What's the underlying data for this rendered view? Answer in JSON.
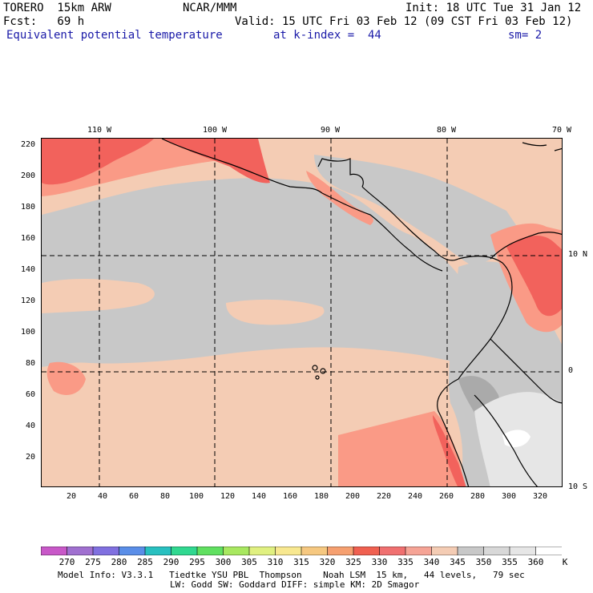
{
  "header": {
    "model": "TORERO  15km ARW",
    "org": "NCAR/MMM",
    "init": "Init: 18 UTC Tue 31 Jan 12",
    "fcst": "Fcst:   69 h",
    "valid": "Valid: 15 UTC Fri 03 Feb 12 (09 CST Fri 03 Feb 12)",
    "field": "Equivalent potential temperature",
    "level": "at k-index =  44",
    "smooth": "sm= 2"
  },
  "map": {
    "top_lon_labels": [
      "110 W",
      "100 W",
      "90 W",
      "80 W",
      "70 W"
    ],
    "right_lat_labels": [
      "10 N",
      "0",
      "10 S"
    ],
    "y_ticks": [
      "220",
      "200",
      "180",
      "160",
      "140",
      "120",
      "100",
      "80",
      "60",
      "40",
      "20"
    ],
    "x_ticks": [
      "20",
      "40",
      "60",
      "80",
      "100",
      "120",
      "140",
      "160",
      "180",
      "200",
      "220",
      "240",
      "260",
      "280",
      "300",
      "320"
    ],
    "colors": {
      "gray": "#c8c8c8",
      "tan": "#f4ccb4",
      "salmon": "#fa9a86",
      "red": "#f2625c",
      "lightgray": "#e6e6e6",
      "white": "#ffffff",
      "darkgray": "#aaaaaa"
    }
  },
  "colorbar": {
    "unit": "K",
    "labels": [
      "270",
      "275",
      "280",
      "285",
      "290",
      "295",
      "300",
      "305",
      "310",
      "315",
      "320",
      "325",
      "330",
      "335",
      "340",
      "345",
      "350",
      "355",
      "360"
    ],
    "colors": [
      "#c858c8",
      "#a070d0",
      "#8070e0",
      "#5a8ee8",
      "#28c0c0",
      "#30d890",
      "#60e060",
      "#a8e860",
      "#e0f080",
      "#f8e890",
      "#f6c880",
      "#f6a070",
      "#f06050",
      "#f07070",
      "#f6a496",
      "#f4ccb4",
      "#c8c8c8",
      "#d8d8d8",
      "#e6e6e6",
      "#ffffff"
    ]
  },
  "footer": {
    "line1": "Model Info: V3.3.1   Tiedtke YSU PBL  Thompson    Noah LSM  15 km,   44 levels,   79 sec",
    "line2": "LW: Godd SW: Goddard DIFF: simple KM: 2D Smagor"
  }
}
